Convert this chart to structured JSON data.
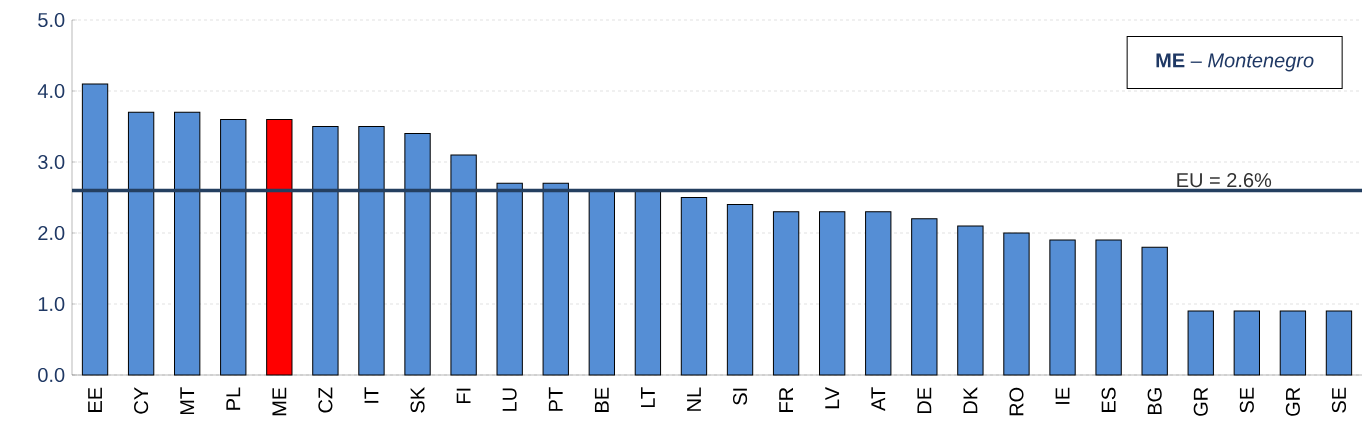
{
  "chart_data": {
    "type": "bar",
    "categories": [
      "EE",
      "CY",
      "MT",
      "PL",
      "ME",
      "CZ",
      "IT",
      "SK",
      "FI",
      "LU",
      "PT",
      "BE",
      "LT",
      "NL",
      "SI",
      "FR",
      "LV",
      "AT",
      "DE",
      "DK",
      "RO",
      "IE",
      "ES",
      "BG",
      "GR",
      "SE",
      "GR",
      "SE"
    ],
    "values": [
      4.1,
      3.7,
      3.7,
      3.6,
      3.6,
      3.5,
      3.5,
      3.4,
      3.1,
      2.7,
      2.7,
      2.6,
      2.6,
      2.5,
      2.4,
      2.3,
      2.3,
      2.3,
      2.2,
      2.1,
      2.0,
      1.9,
      1.9,
      1.8,
      0.9,
      0.9,
      0.9,
      0.9
    ],
    "colors": [
      "#558ed5",
      "#558ed5",
      "#558ed5",
      "#558ed5",
      "#ff0000",
      "#558ed5",
      "#558ed5",
      "#558ed5",
      "#558ed5",
      "#558ed5",
      "#558ed5",
      "#558ed5",
      "#558ed5",
      "#558ed5",
      "#558ed5",
      "#558ed5",
      "#558ed5",
      "#558ed5",
      "#558ed5",
      "#558ed5",
      "#558ed5",
      "#558ed5",
      "#558ed5",
      "#558ed5",
      "#558ed5",
      "#558ed5",
      "#558ed5",
      "#558ed5"
    ],
    "ylim": [
      0,
      5
    ],
    "yticks": [
      {
        "value": 0,
        "label": "0.0"
      },
      {
        "value": 1,
        "label": "1.0"
      },
      {
        "value": 2,
        "label": "2.0"
      },
      {
        "value": 3,
        "label": "3.0"
      },
      {
        "value": 4,
        "label": "4.0"
      },
      {
        "value": 5,
        "label": "5.0"
      }
    ],
    "grid": "y",
    "ref_lines": [
      {
        "axis": "y",
        "value": 2.6,
        "label": "EU  = 2.6%",
        "color": "#243f60"
      }
    ],
    "annotations": [
      "**ME** – *Montenegro*"
    ]
  }
}
